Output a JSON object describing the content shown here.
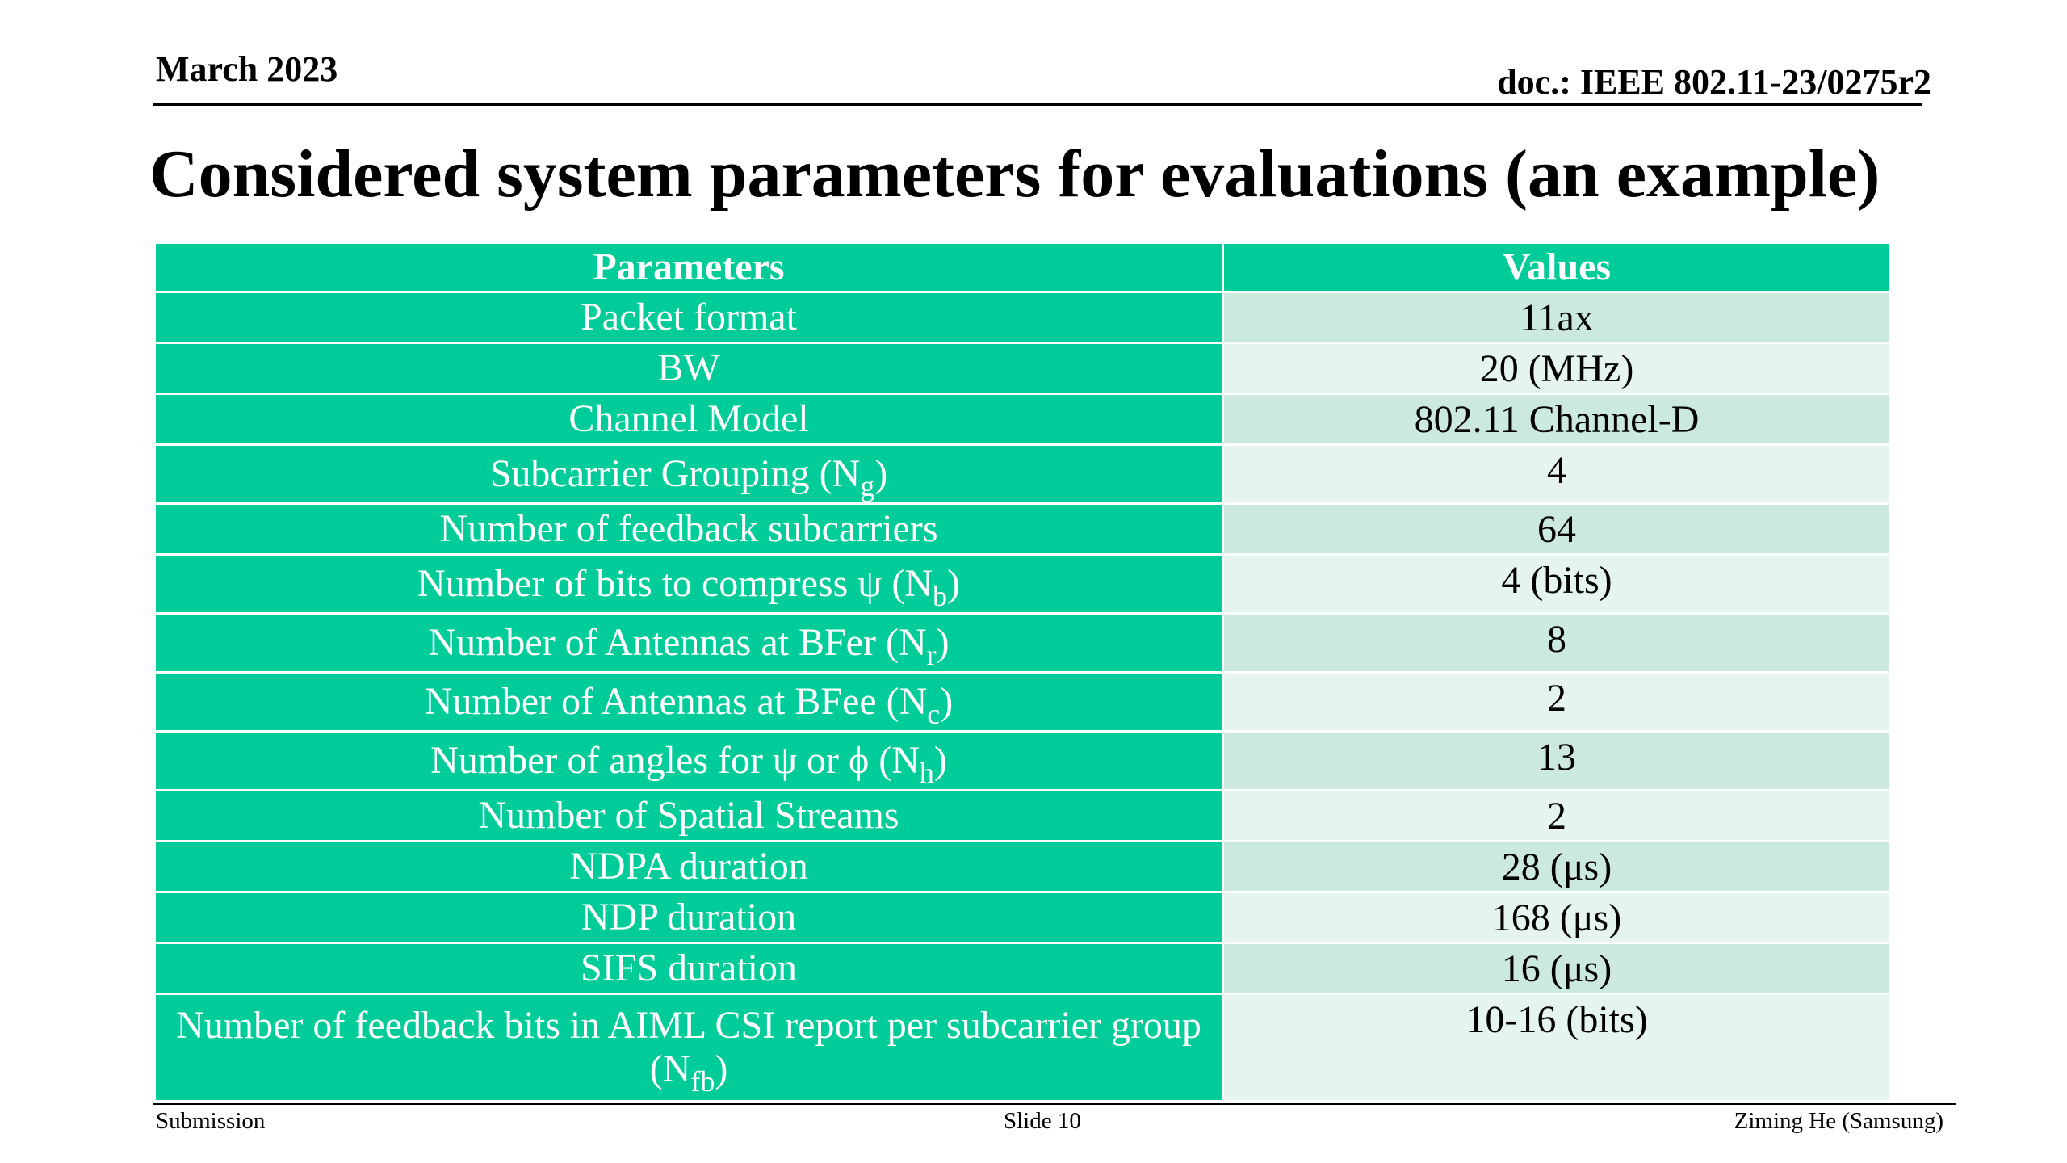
{
  "header": {
    "date": "March 2023",
    "doc_id": "doc.: IEEE 802.11-23/0275r2"
  },
  "title": "Considered system parameters for evaluations (an example)",
  "table": {
    "columns": [
      "Parameters",
      "Values"
    ],
    "rows": [
      {
        "param": "Packet format",
        "sub": "",
        "suffix": "",
        "value": "11ax"
      },
      {
        "param": "BW",
        "sub": "",
        "suffix": "",
        "value": "20 (MHz)"
      },
      {
        "param": "Channel Model",
        "sub": "",
        "suffix": "",
        "value": "802.11 Channel-D"
      },
      {
        "param": "Subcarrier Grouping (N",
        "sub": "g",
        "suffix": ")",
        "value": "4"
      },
      {
        "param": "Number of feedback subcarriers",
        "sub": "",
        "suffix": "",
        "value": "64"
      },
      {
        "param": "Number of bits to compress ψ (N",
        "sub": "b",
        "suffix": ")",
        "value": "4 (bits)"
      },
      {
        "param": "Number of Antennas at BFer (N",
        "sub": "r",
        "suffix": ")",
        "value": "8"
      },
      {
        "param": "Number of Antennas at BFee (N",
        "sub": "c",
        "suffix": ")",
        "value": "2"
      },
      {
        "param": "Number of angles for ψ or ϕ  (N",
        "sub": "h",
        "suffix": ")",
        "value": "13"
      },
      {
        "param": "Number of Spatial Streams",
        "sub": "",
        "suffix": "",
        "value": "2"
      },
      {
        "param": "NDPA duration",
        "sub": "",
        "suffix": "",
        "value": "28 (μs)"
      },
      {
        "param": "NDP duration",
        "sub": "",
        "suffix": "",
        "value": "168 (μs)"
      },
      {
        "param": "SIFS duration",
        "sub": "",
        "suffix": "",
        "value": "16 (μs)"
      },
      {
        "param": "Number of feedback bits in AIML CSI report per subcarrier group (N",
        "sub": "fb",
        "suffix": ")",
        "value": "10-16 (bits)"
      }
    ]
  },
  "footer": {
    "left": "Submission",
    "center": "Slide 10",
    "right": "Ziming He (Samsung)"
  }
}
